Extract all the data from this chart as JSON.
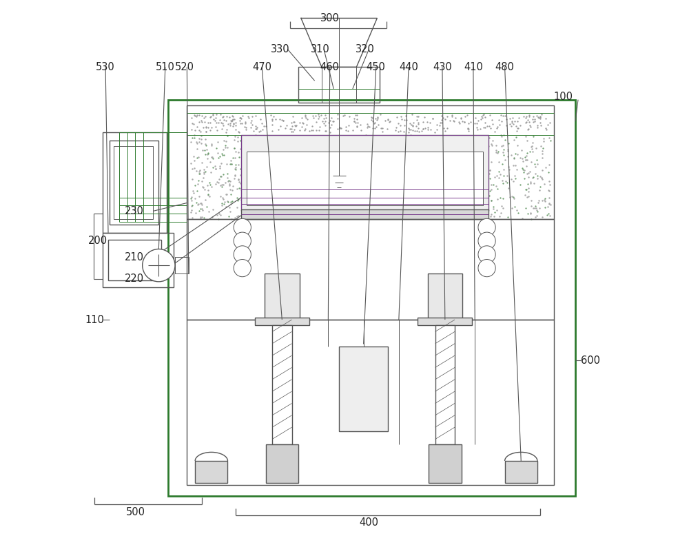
{
  "bg_color": "#ffffff",
  "line_color": "#555555",
  "green_color": "#2d7a2d",
  "purple_color": "#7b3f8e",
  "fig_width": 10.0,
  "fig_height": 7.94
}
